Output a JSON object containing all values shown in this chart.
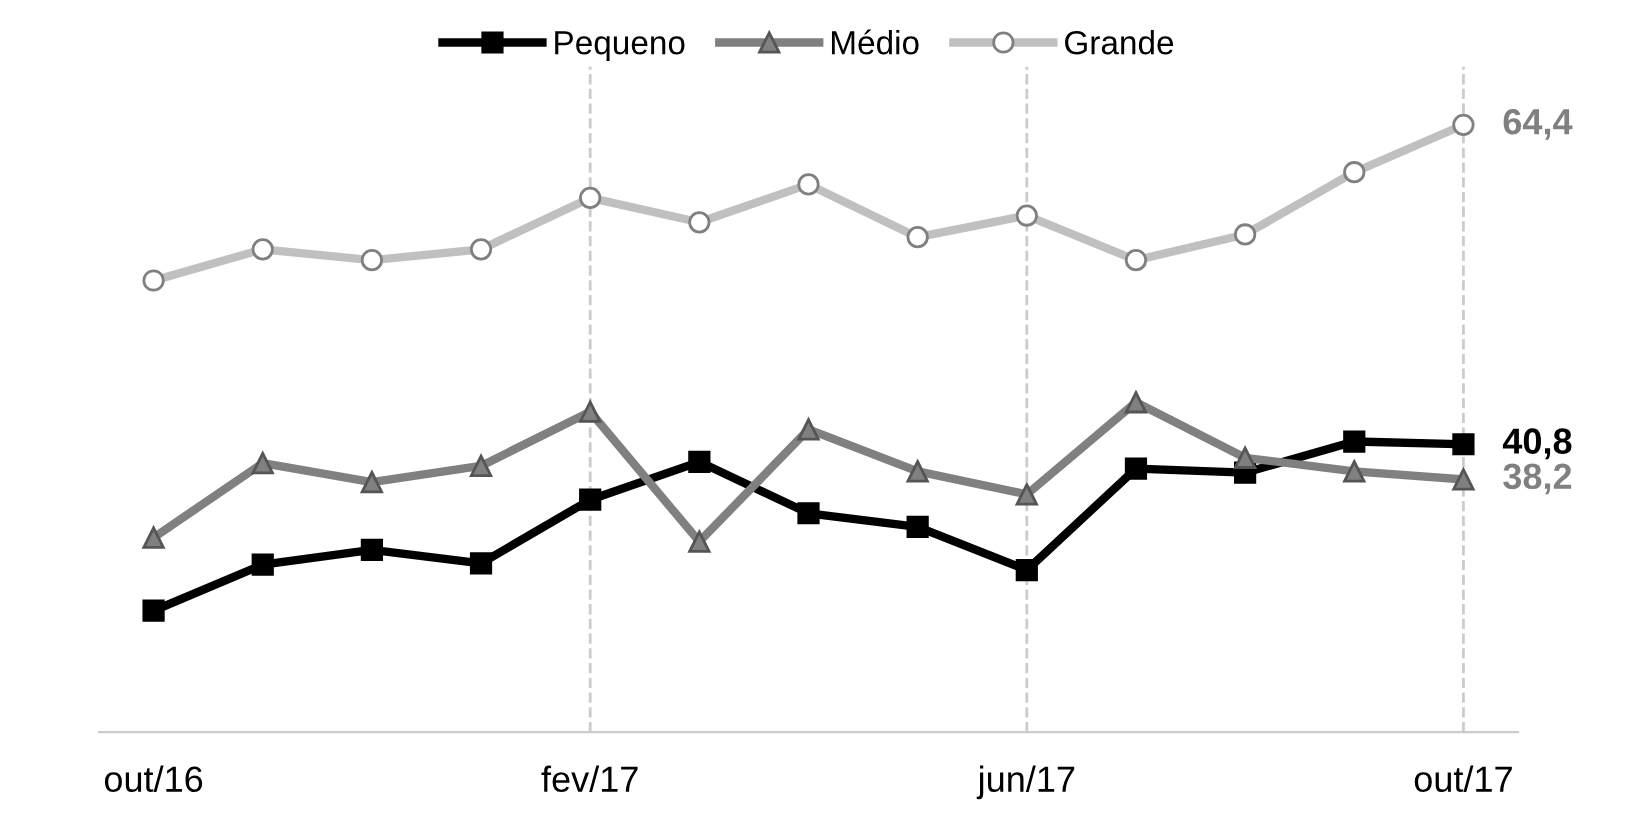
{
  "chart_data": {
    "type": "line",
    "categories": [
      "out/16",
      null,
      null,
      null,
      "fev/17",
      null,
      null,
      null,
      "jun/17",
      null,
      null,
      null,
      "out/17"
    ],
    "series": [
      {
        "name": "Pequeno",
        "color": "#000000",
        "marker": "square",
        "values": [
          28.5,
          31.9,
          33.0,
          32.0,
          36.7,
          39.5,
          35.7,
          34.7,
          31.5,
          39.0,
          38.7,
          41.0,
          40.8
        ],
        "value_labels": [
          null,
          null,
          null,
          null,
          null,
          null,
          null,
          null,
          null,
          null,
          null,
          null,
          "40,8"
        ]
      },
      {
        "name": "Médio",
        "color": "#808080",
        "marker": "triangle",
        "values": [
          33.9,
          39.4,
          38.0,
          39.2,
          43.2,
          33.6,
          41.9,
          38.8,
          37.1,
          43.9,
          39.8,
          38.8,
          38.2
        ],
        "value_labels": [
          null,
          null,
          null,
          null,
          null,
          null,
          null,
          null,
          null,
          null,
          null,
          null,
          "38,2"
        ]
      },
      {
        "name": "Grande",
        "color": "#c0c0c0",
        "marker": "circle",
        "values": [
          52.9,
          55.2,
          54.4,
          55.2,
          59.0,
          57.2,
          60.0,
          56.1,
          57.7,
          54.4,
          56.3,
          60.9,
          64.4
        ],
        "value_labels": [
          null,
          null,
          null,
          null,
          null,
          null,
          null,
          null,
          null,
          null,
          null,
          null,
          "64,4"
        ]
      }
    ],
    "grid": "x",
    "legend": "top",
    "line_style": "solid"
  }
}
